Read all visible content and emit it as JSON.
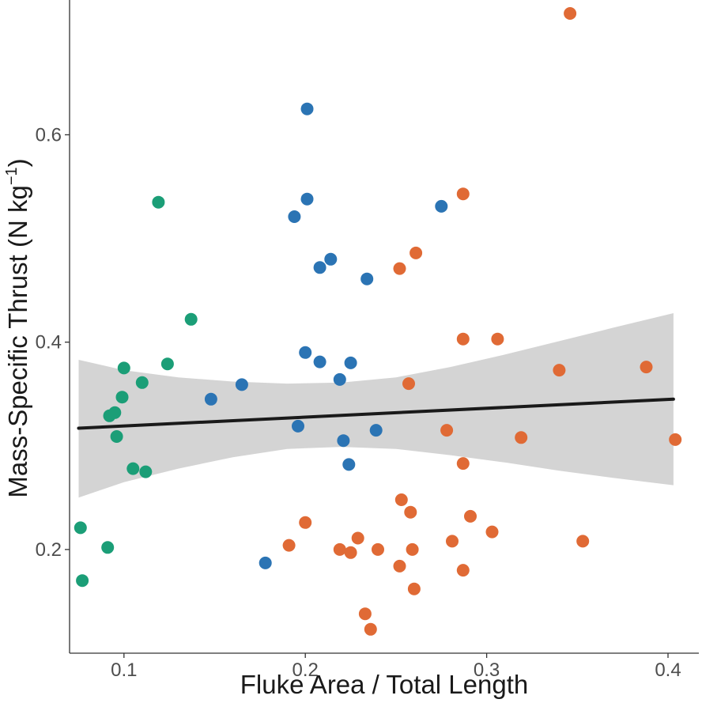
{
  "chart_data": {
    "type": "scatter",
    "xlabel": "Fluke Area / Total Length",
    "ylabel": "Mass-Specific Thrust (N kg",
    "ylabel_sup": "−1",
    "ylabel_close": ")",
    "xlim": [
      0.07,
      0.417
    ],
    "ylim": [
      0.1,
      0.73
    ],
    "x_ticks": [
      0.1,
      0.2,
      0.3,
      0.4
    ],
    "y_ticks": [
      0.2,
      0.4,
      0.6
    ],
    "x_tick_labels": [
      "0.1",
      "0.2",
      "0.3",
      "0.4"
    ],
    "y_tick_labels": [
      "0.2",
      "0.4",
      "0.6"
    ],
    "grid": false,
    "legend": "none",
    "series": [
      {
        "color": "#1b9e77",
        "points": [
          [
            0.076,
            0.221
          ],
          [
            0.077,
            0.17
          ],
          [
            0.091,
            0.202
          ],
          [
            0.092,
            0.329
          ],
          [
            0.095,
            0.332
          ],
          [
            0.096,
            0.309
          ],
          [
            0.099,
            0.347
          ],
          [
            0.1,
            0.375
          ],
          [
            0.105,
            0.278
          ],
          [
            0.11,
            0.361
          ],
          [
            0.112,
            0.275
          ],
          [
            0.119,
            0.535
          ],
          [
            0.124,
            0.379
          ],
          [
            0.137,
            0.422
          ]
        ]
      },
      {
        "color": "#2b74b4",
        "points": [
          [
            0.148,
            0.345
          ],
          [
            0.165,
            0.359
          ],
          [
            0.178,
            0.187
          ],
          [
            0.194,
            0.521
          ],
          [
            0.196,
            0.319
          ],
          [
            0.2,
            0.39
          ],
          [
            0.201,
            0.625
          ],
          [
            0.201,
            0.538
          ],
          [
            0.208,
            0.472
          ],
          [
            0.208,
            0.381
          ],
          [
            0.214,
            0.48
          ],
          [
            0.219,
            0.364
          ],
          [
            0.221,
            0.305
          ],
          [
            0.224,
            0.282
          ],
          [
            0.225,
            0.38
          ],
          [
            0.234,
            0.461
          ],
          [
            0.239,
            0.315
          ],
          [
            0.275,
            0.531
          ]
        ]
      },
      {
        "color": "#e06a35",
        "points": [
          [
            0.191,
            0.204
          ],
          [
            0.2,
            0.226
          ],
          [
            0.219,
            0.2
          ],
          [
            0.225,
            0.197
          ],
          [
            0.229,
            0.211
          ],
          [
            0.233,
            0.138
          ],
          [
            0.236,
            0.123
          ],
          [
            0.24,
            0.2
          ],
          [
            0.252,
            0.471
          ],
          [
            0.252,
            0.184
          ],
          [
            0.253,
            0.248
          ],
          [
            0.257,
            0.36
          ],
          [
            0.258,
            0.236
          ],
          [
            0.259,
            0.2
          ],
          [
            0.26,
            0.162
          ],
          [
            0.261,
            0.486
          ],
          [
            0.278,
            0.315
          ],
          [
            0.281,
            0.208
          ],
          [
            0.287,
            0.543
          ],
          [
            0.287,
            0.403
          ],
          [
            0.287,
            0.283
          ],
          [
            0.287,
            0.18
          ],
          [
            0.291,
            0.232
          ],
          [
            0.303,
            0.217
          ],
          [
            0.306,
            0.403
          ],
          [
            0.319,
            0.308
          ],
          [
            0.34,
            0.373
          ],
          [
            0.346,
            0.717
          ],
          [
            0.353,
            0.208
          ],
          [
            0.388,
            0.376
          ],
          [
            0.404,
            0.306
          ]
        ]
      }
    ],
    "regression": {
      "color": "#1a1a1a",
      "line": [
        [
          0.075,
          0.317
        ],
        [
          0.403,
          0.345
        ]
      ],
      "ci_color": "#cccccc",
      "ci_upper": [
        [
          0.075,
          0.383
        ],
        [
          0.1,
          0.373
        ],
        [
          0.13,
          0.366
        ],
        [
          0.16,
          0.362
        ],
        [
          0.19,
          0.36
        ],
        [
          0.22,
          0.361
        ],
        [
          0.25,
          0.366
        ],
        [
          0.28,
          0.376
        ],
        [
          0.31,
          0.388
        ],
        [
          0.34,
          0.401
        ],
        [
          0.37,
          0.414
        ],
        [
          0.403,
          0.428
        ]
      ],
      "ci_lower": [
        [
          0.075,
          0.25
        ],
        [
          0.1,
          0.265
        ],
        [
          0.13,
          0.278
        ],
        [
          0.16,
          0.289
        ],
        [
          0.19,
          0.297
        ],
        [
          0.22,
          0.299
        ],
        [
          0.25,
          0.297
        ],
        [
          0.28,
          0.291
        ],
        [
          0.31,
          0.284
        ],
        [
          0.34,
          0.276
        ],
        [
          0.37,
          0.269
        ],
        [
          0.403,
          0.262
        ]
      ]
    }
  }
}
